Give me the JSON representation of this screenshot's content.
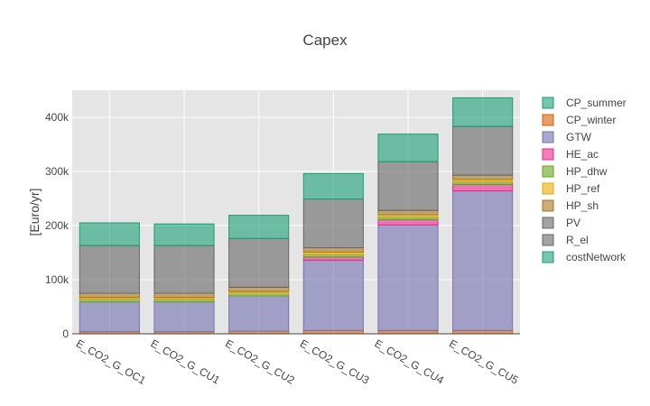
{
  "chart_data": {
    "type": "bar",
    "stacked": true,
    "title": "Capex",
    "xlabel": "",
    "ylabel": "[Euro/yr]",
    "ylim": [
      0,
      450000
    ],
    "yticks": [
      0,
      100000,
      200000,
      300000,
      400000
    ],
    "ytick_labels": [
      "0",
      "100k",
      "200k",
      "300k",
      "400k"
    ],
    "grid": true,
    "legend_position": "right",
    "categories": [
      "E_CO2_G_OC1",
      "E_CO2_G_CU1",
      "E_CO2_G_CU2",
      "E_CO2_G_CU3",
      "E_CO2_G_CU4",
      "E_CO2_G_CU5"
    ],
    "series": [
      {
        "name": "CP_summer",
        "color": "#1b9e77",
        "values": [
          0,
          0,
          0,
          0,
          0,
          0
        ]
      },
      {
        "name": "CP_winter",
        "color": "#d95f02",
        "values": [
          4000,
          4000,
          5000,
          6000,
          6000,
          6000
        ]
      },
      {
        "name": "GTW",
        "color": "#7570b3",
        "values": [
          55000,
          55000,
          65000,
          130000,
          195000,
          258000
        ]
      },
      {
        "name": "HE_ac",
        "color": "#e7298a",
        "values": [
          0,
          0,
          0,
          6000,
          10000,
          12000
        ]
      },
      {
        "name": "HP_dhw",
        "color": "#66a61e",
        "values": [
          5000,
          5000,
          5000,
          5000,
          5000,
          5000
        ]
      },
      {
        "name": "HP_ref",
        "color": "#e6ab02",
        "values": [
          3000,
          3000,
          3000,
          4000,
          4000,
          4000
        ]
      },
      {
        "name": "HP_sh",
        "color": "#a6761d",
        "values": [
          8000,
          8000,
          8000,
          8000,
          8000,
          8000
        ]
      },
      {
        "name": "PV",
        "color": "#666666",
        "values": [
          0,
          0,
          0,
          0,
          0,
          0
        ]
      },
      {
        "name": "R_el",
        "color": "#666666",
        "values": [
          88000,
          88000,
          90000,
          90000,
          90000,
          90000
        ]
      },
      {
        "name": "costNetwork",
        "color": "#1b9e77",
        "values": [
          42000,
          40000,
          43000,
          47000,
          51000,
          53000
        ]
      }
    ]
  }
}
